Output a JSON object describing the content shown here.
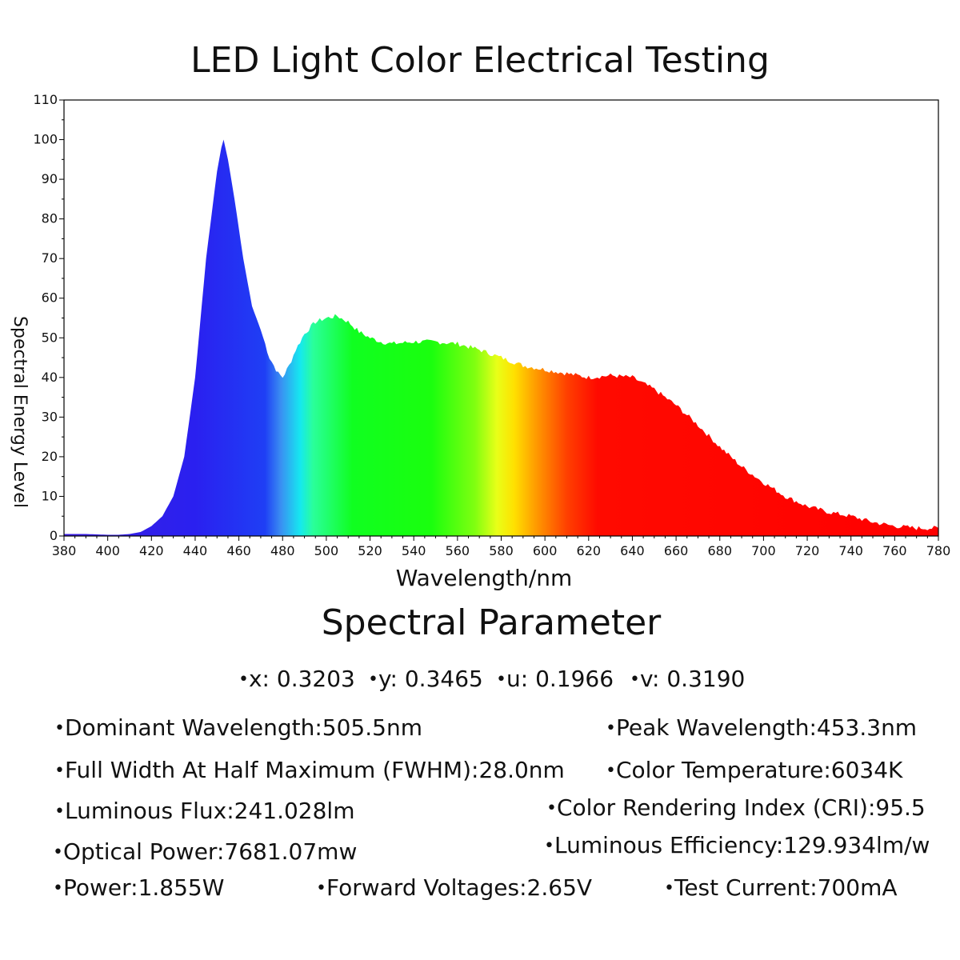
{
  "title": "LED Light Color Electrical Testing",
  "chart_data": {
    "type": "area",
    "xlabel": "Wavelength/nm",
    "ylabel": "Spectral Energy Level",
    "xlim": [
      380,
      780
    ],
    "ylim": [
      0,
      110
    ],
    "x_ticks": [
      "380",
      "400",
      "420",
      "440",
      "460",
      "480",
      "500",
      "520",
      "540",
      "560",
      "580",
      "600",
      "620",
      "640",
      "660",
      "680",
      "700",
      "720",
      "740",
      "760",
      "780"
    ],
    "y_ticks": [
      "0",
      "10",
      "20",
      "30",
      "40",
      "50",
      "60",
      "70",
      "80",
      "90",
      "100",
      "110"
    ],
    "grid": false,
    "legend": "none",
    "fill": "visible-spectrum gradient",
    "x": [
      380,
      390,
      400,
      405,
      410,
      415,
      420,
      425,
      430,
      435,
      440,
      445,
      450,
      452,
      453,
      455,
      458,
      462,
      466,
      470,
      474,
      478,
      480,
      483,
      486,
      490,
      495,
      500,
      505,
      510,
      515,
      520,
      525,
      530,
      540,
      550,
      560,
      570,
      580,
      590,
      600,
      610,
      620,
      630,
      640,
      650,
      660,
      670,
      680,
      690,
      700,
      710,
      720,
      730,
      740,
      750,
      760,
      770,
      780
    ],
    "y": [
      0.5,
      0.5,
      0.3,
      0.3,
      0.5,
      1.0,
      2.5,
      5.0,
      10.0,
      20.0,
      40.0,
      70.0,
      92.0,
      98.0,
      100.0,
      95.0,
      85.0,
      70.0,
      58.0,
      52.0,
      45.0,
      41.0,
      40.0,
      43.0,
      47.0,
      51.0,
      54.0,
      55.0,
      55.5,
      54.0,
      51.5,
      50.0,
      49.0,
      48.5,
      49.0,
      49.0,
      48.5,
      47.0,
      45.0,
      43.0,
      42.0,
      41.0,
      40.0,
      40.5,
      40.0,
      37.0,
      33.0,
      28.0,
      22.5,
      17.5,
      13.5,
      10.0,
      7.5,
      6.0,
      5.0,
      3.5,
      2.5,
      2.0,
      2.0
    ]
  },
  "spectral": {
    "title": "Spectral Parameter",
    "bullet": "•",
    "chromaticity": [
      "x: 0.3203",
      "y: 0.3465",
      "u: 0.1966",
      "v: 0.3190"
    ],
    "dominant_wavelength": "Dominant Wavelength:505.5nm",
    "peak_wavelength": "Peak Wavelength:453.3nm",
    "fwhm": "Full Width At Half Maximum (FWHM):28.0nm",
    "color_temperature": "Color Temperature:6034K",
    "luminous_flux": "Luminous Flux:241.028lm",
    "cri": "Color Rendering Index (CRI):95.5",
    "optical_power": "Optical Power:7681.07mw",
    "luminous_efficiency": "Luminous Efficiency:129.934lm/w",
    "power": "Power:1.855W",
    "forward_voltage": "Forward Voltages:2.65V",
    "test_current": "Test Current:700mA"
  }
}
